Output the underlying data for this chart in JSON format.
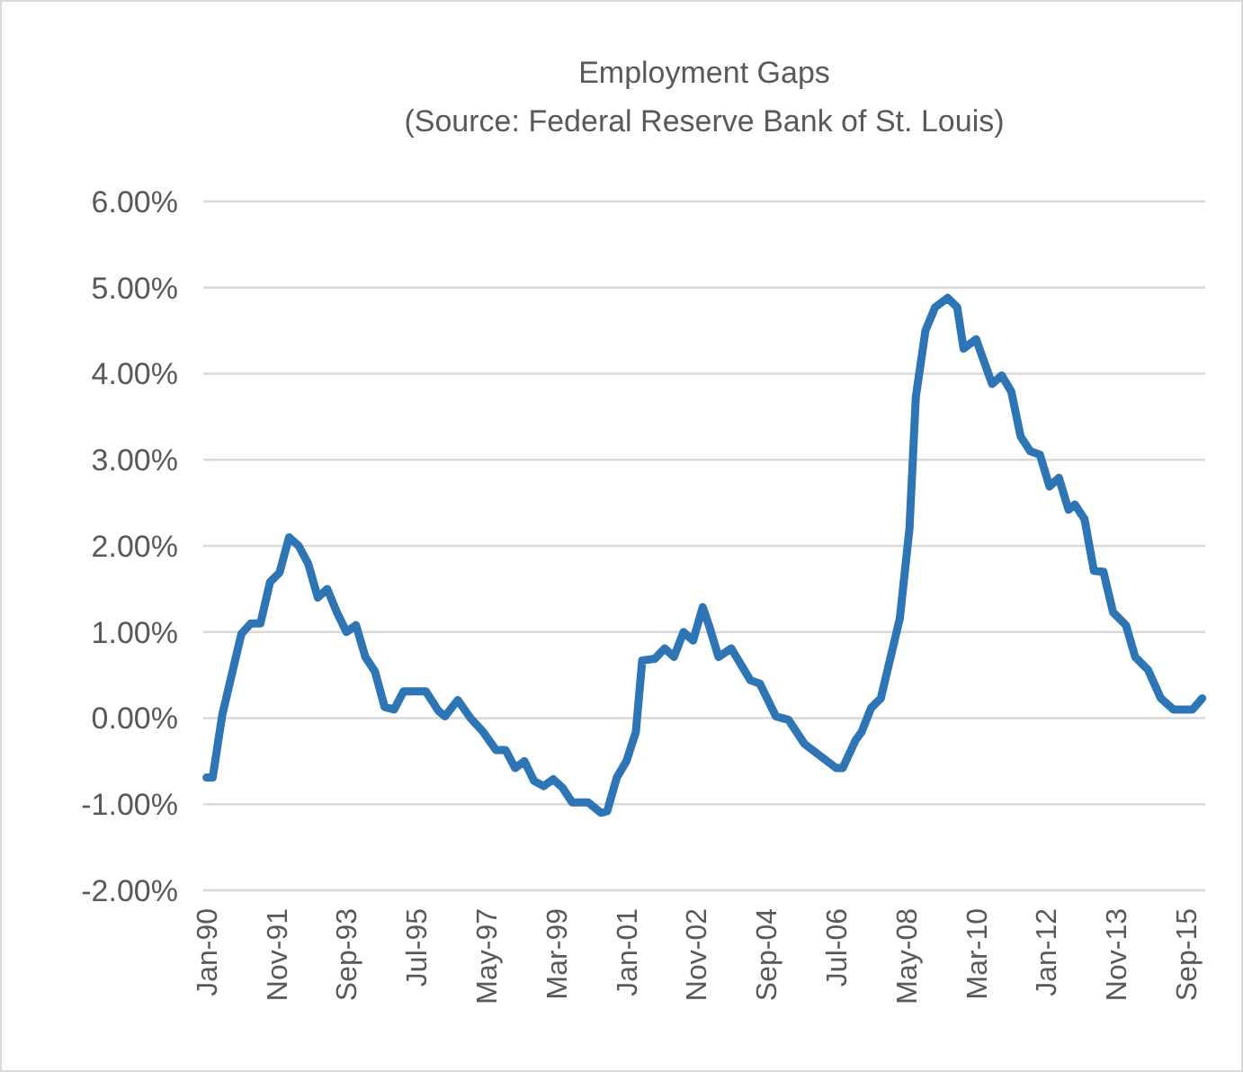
{
  "chart_data": {
    "type": "line",
    "title": "Employment Gaps",
    "subtitle": "(Source: Federal Reserve Bank of St. Louis)",
    "x": [
      "1990-01",
      "1990-03",
      "1990-06",
      "1990-12",
      "1991-03",
      "1991-06",
      "1991-09",
      "1991-12",
      "1992-03",
      "1992-06",
      "1992-09",
      "1992-12",
      "1993-03",
      "1993-06",
      "1993-09",
      "1993-12",
      "1994-03",
      "1994-06",
      "1994-09",
      "1994-12",
      "1995-03",
      "1995-10",
      "1996-02",
      "1996-04",
      "1996-08",
      "1996-12",
      "1997-04",
      "1997-08",
      "1997-11",
      "1998-02",
      "1998-05",
      "1998-08",
      "1998-11",
      "1999-02",
      "1999-05",
      "1999-08",
      "2000-01",
      "2000-05",
      "2000-07",
      "2000-10",
      "2001-01",
      "2001-04",
      "2001-06",
      "2001-10",
      "2002-01",
      "2002-04",
      "2002-07",
      "2002-10",
      "2003-01",
      "2003-03",
      "2003-06",
      "2003-10",
      "2004-04",
      "2004-07",
      "2004-12",
      "2005-04",
      "2005-09",
      "2006-07",
      "2006-09",
      "2007-01",
      "2007-03",
      "2007-06",
      "2007-09",
      "2008-03",
      "2008-06",
      "2008-08",
      "2008-11",
      "2009-02",
      "2009-06",
      "2009-09",
      "2009-11",
      "2010-03",
      "2010-05",
      "2010-08",
      "2010-11",
      "2011-02",
      "2011-05",
      "2011-08",
      "2011-11",
      "2012-02",
      "2012-05",
      "2012-08",
      "2012-10",
      "2013-01",
      "2013-04",
      "2013-07",
      "2013-10",
      "2014-02",
      "2014-05",
      "2014-09",
      "2015-01",
      "2015-05",
      "2015-11",
      "2016-02"
    ],
    "series": [
      {
        "color": "#2e75b6",
        "values": [
          -0.69,
          -0.69,
          0.04,
          0.98,
          1.1,
          1.1,
          1.58,
          1.69,
          2.1,
          2.0,
          1.79,
          1.4,
          1.5,
          1.23,
          1.0,
          1.08,
          0.71,
          0.54,
          0.13,
          0.1,
          0.31,
          0.31,
          0.08,
          0.02,
          0.21,
          0.0,
          -0.16,
          -0.37,
          -0.37,
          -0.58,
          -0.5,
          -0.73,
          -0.79,
          -0.71,
          -0.81,
          -0.98,
          -0.98,
          -1.1,
          -1.08,
          -0.69,
          -0.5,
          -0.16,
          0.67,
          0.69,
          0.81,
          0.71,
          1.0,
          0.9,
          1.29,
          1.08,
          0.71,
          0.81,
          0.44,
          0.4,
          0.02,
          -0.02,
          -0.3,
          -0.58,
          -0.58,
          -0.26,
          -0.16,
          0.12,
          0.23,
          1.16,
          2.2,
          3.73,
          4.5,
          4.77,
          4.88,
          4.77,
          4.29,
          4.4,
          4.19,
          3.88,
          3.98,
          3.79,
          3.27,
          3.1,
          3.06,
          2.69,
          2.79,
          2.42,
          2.48,
          2.31,
          1.71,
          1.7,
          1.23,
          1.08,
          0.71,
          0.56,
          0.23,
          0.1,
          0.1,
          0.23
        ]
      }
    ],
    "xlim": [
      "1989-12",
      "2016-03"
    ],
    "xticks": [
      {
        "value": "1990-01",
        "label": "Jan-90"
      },
      {
        "value": "1991-11",
        "label": "Nov-91"
      },
      {
        "value": "1993-09",
        "label": "Sep-93"
      },
      {
        "value": "1995-07",
        "label": "Jul-95"
      },
      {
        "value": "1997-05",
        "label": "May-97"
      },
      {
        "value": "1999-03",
        "label": "Mar-99"
      },
      {
        "value": "2001-01",
        "label": "Jan-01"
      },
      {
        "value": "2002-11",
        "label": "Nov-02"
      },
      {
        "value": "2004-09",
        "label": "Sep-04"
      },
      {
        "value": "2006-07",
        "label": "Jul-06"
      },
      {
        "value": "2008-05",
        "label": "May-08"
      },
      {
        "value": "2010-03",
        "label": "Mar-10"
      },
      {
        "value": "2012-01",
        "label": "Jan-12"
      },
      {
        "value": "2013-11",
        "label": "Nov-13"
      },
      {
        "value": "2015-09",
        "label": "Sep-15"
      }
    ],
    "ylim": [
      -2,
      6
    ],
    "yticks": [
      {
        "value": -2,
        "label": "-2.00%"
      },
      {
        "value": -1,
        "label": "-1.00%"
      },
      {
        "value": 0,
        "label": "0.00%"
      },
      {
        "value": 1,
        "label": "1.00%"
      },
      {
        "value": 2,
        "label": "2.00%"
      },
      {
        "value": 3,
        "label": "3.00%"
      },
      {
        "value": 4,
        "label": "4.00%"
      },
      {
        "value": 5,
        "label": "5.00%"
      },
      {
        "value": 6,
        "label": "6.00%"
      }
    ],
    "grid": "y",
    "marker": "none",
    "line_style": "solid"
  }
}
